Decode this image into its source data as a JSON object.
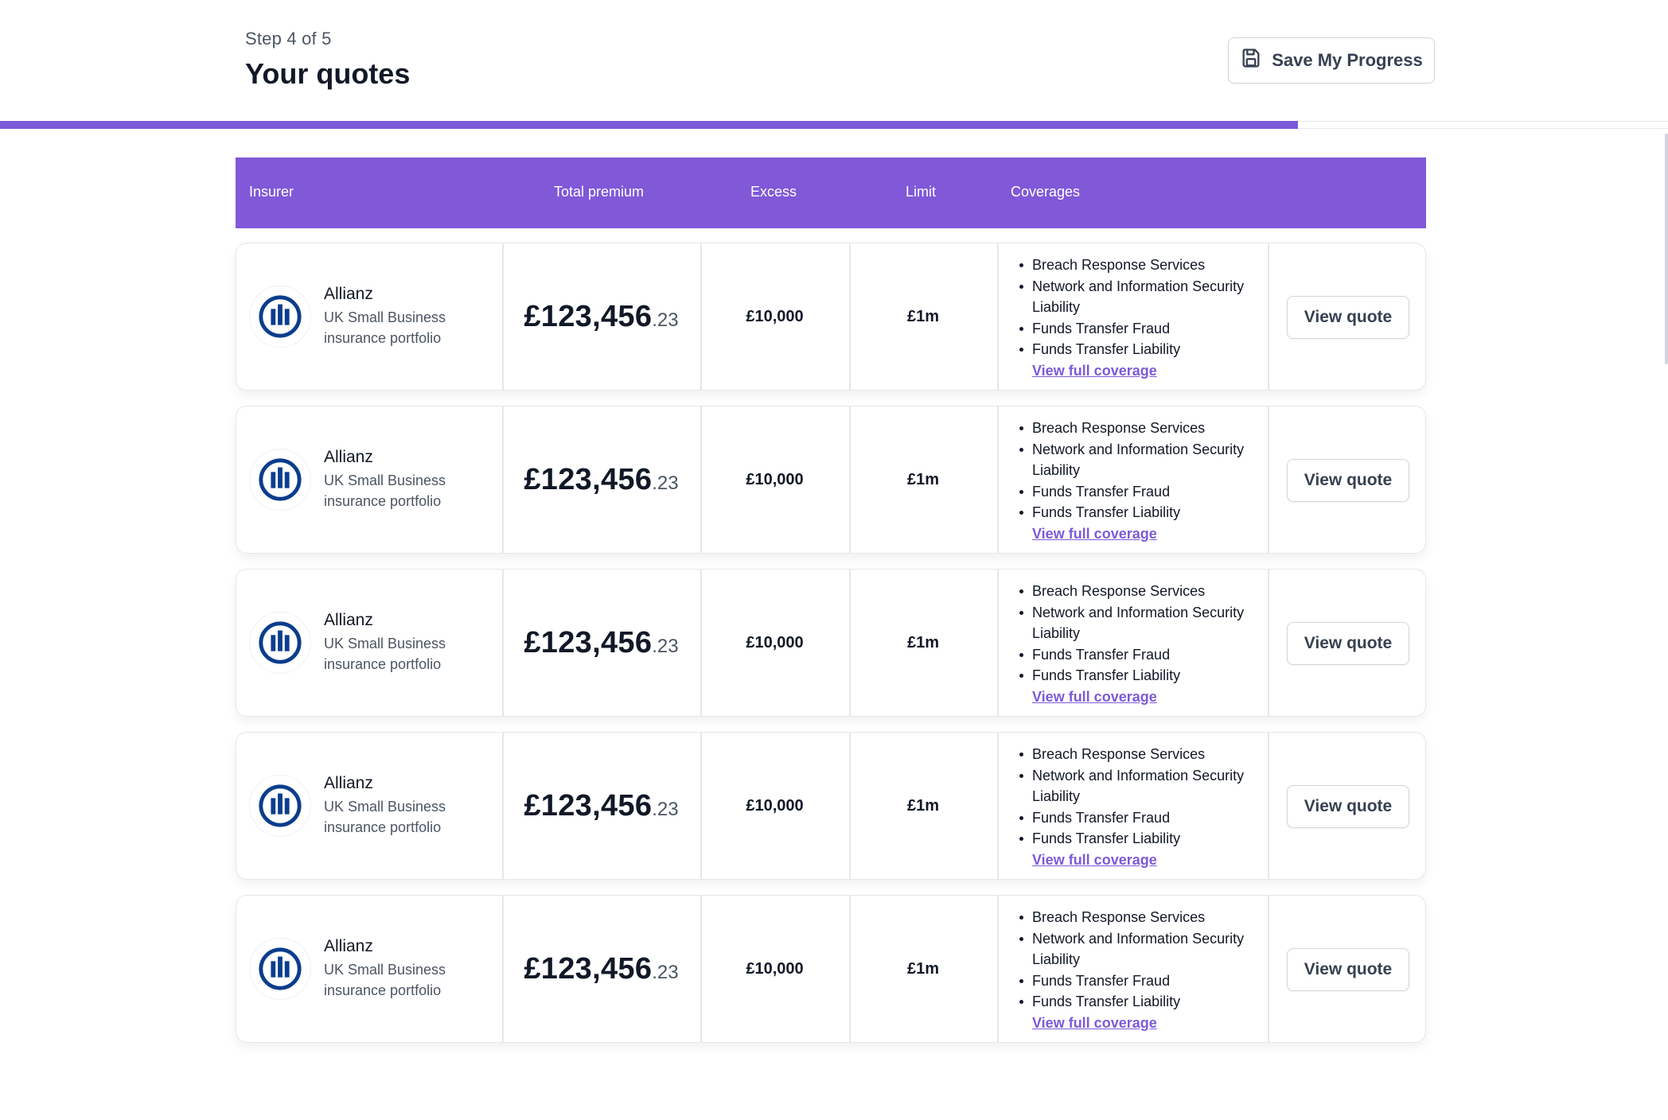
{
  "header": {
    "step_text": "Step 4 of 5",
    "title": "Your quotes",
    "save_button_label": "Save My Progress"
  },
  "progress": {
    "fraction": 0.8
  },
  "table": {
    "columns": {
      "insurer": "Insurer",
      "total_premium": "Total premium",
      "excess": "Excess",
      "limit": "Limit",
      "coverages": "Coverages"
    },
    "rows": [
      {
        "insurer_name": "Allianz",
        "insurer_desc": "UK Small Business insurance portfolio",
        "premium_main": "£123,456",
        "premium_decimal": ".23",
        "excess": "£10,000",
        "limit": "£1m",
        "coverages": [
          "Breach Response Services",
          "Network and Information Security Liability",
          "Funds Transfer Fraud",
          "Funds Transfer Liability"
        ],
        "coverage_link": "View full coverage",
        "action_label": "View quote"
      },
      {
        "insurer_name": "Allianz",
        "insurer_desc": "UK Small Business insurance portfolio",
        "premium_main": "£123,456",
        "premium_decimal": ".23",
        "excess": "£10,000",
        "limit": "£1m",
        "coverages": [
          "Breach Response Services",
          "Network and Information Security Liability",
          "Funds Transfer Fraud",
          "Funds Transfer Liability"
        ],
        "coverage_link": "View full coverage",
        "action_label": "View quote"
      },
      {
        "insurer_name": "Allianz",
        "insurer_desc": "UK Small Business insurance portfolio",
        "premium_main": "£123,456",
        "premium_decimal": ".23",
        "excess": "£10,000",
        "limit": "£1m",
        "coverages": [
          "Breach Response Services",
          "Network and Information Security Liability",
          "Funds Transfer Fraud",
          "Funds Transfer Liability"
        ],
        "coverage_link": "View full coverage",
        "action_label": "View quote"
      },
      {
        "insurer_name": "Allianz",
        "insurer_desc": "UK Small Business insurance portfolio",
        "premium_main": "£123,456",
        "premium_decimal": ".23",
        "excess": "£10,000",
        "limit": "£1m",
        "coverages": [
          "Breach Response Services",
          "Network and Information Security Liability",
          "Funds Transfer Fraud",
          "Funds Transfer Liability"
        ],
        "coverage_link": "View full coverage",
        "action_label": "View quote"
      },
      {
        "insurer_name": "Allianz",
        "insurer_desc": "UK Small Business insurance portfolio",
        "premium_main": "£123,456",
        "premium_decimal": ".23",
        "excess": "£10,000",
        "limit": "£1m",
        "coverages": [
          "Breach Response Services",
          "Network and Information Security Liability",
          "Funds Transfer Fraud",
          "Funds Transfer Liability"
        ],
        "coverage_link": "View full coverage",
        "action_label": "View quote"
      }
    ]
  },
  "colors": {
    "accent": "#8058d8",
    "link": "#7c5ad9",
    "allianz_blue": "#0b3d8c"
  },
  "icons": {
    "save": "floppy-disk-icon",
    "insurer_logo": "allianz-logo-icon"
  }
}
